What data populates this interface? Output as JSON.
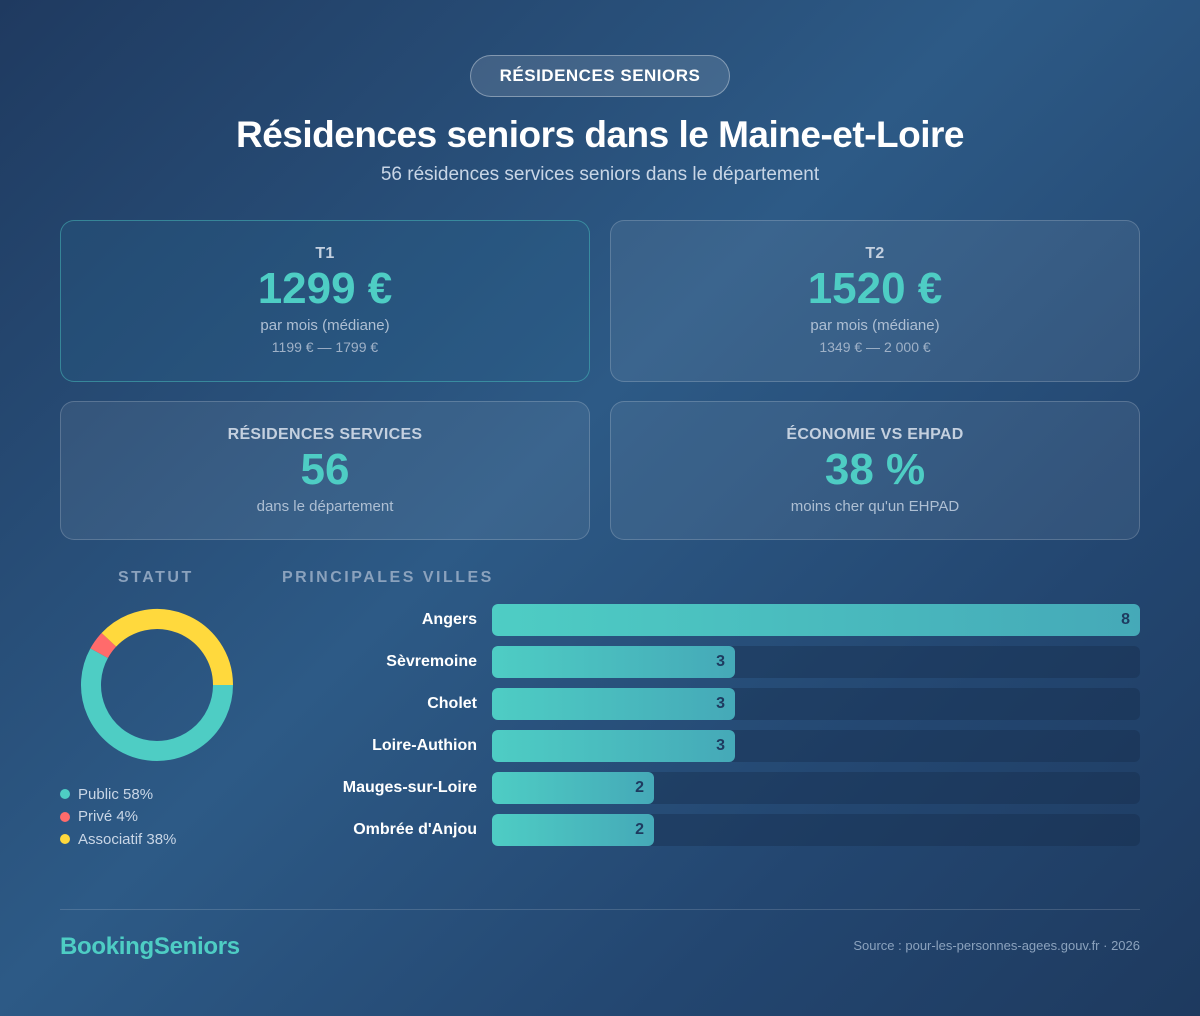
{
  "badge": "RÉSIDENCES SENIORS",
  "title": "Résidences seniors dans le Maine-et-Loire",
  "subtitle": "56 résidences services seniors dans le département",
  "cards": [
    {
      "label": "T1",
      "value": "1299 €",
      "sub": "par mois (médiane)",
      "range": "1199 € — 1799 €"
    },
    {
      "label": "T2",
      "value": "1520 €",
      "sub": "par mois (médiane)",
      "range": "1349 € — 2 000 €"
    },
    {
      "label": "RÉSIDENCES SERVICES",
      "value": "56",
      "sub": "dans le département"
    },
    {
      "label": "ÉCONOMIE VS EHPAD",
      "value": "38 %",
      "sub": "moins cher qu'un EHPAD"
    }
  ],
  "chart_data": [
    {
      "type": "pie",
      "title": "STATUT",
      "donut": true,
      "slices": [
        {
          "label": "Public 58%",
          "value": 58,
          "color": "#4ecdc4"
        },
        {
          "label": "Privé 4%",
          "value": 4,
          "color": "#ff6b6b"
        },
        {
          "label": "Associatif 38%",
          "value": 38,
          "color": "#ffd93d"
        }
      ]
    },
    {
      "type": "bar",
      "orientation": "horizontal",
      "title": "PRINCIPALES VILLES",
      "categories": [
        "Angers",
        "Sèvremoine",
        "Cholet",
        "Loire-Authion",
        "Mauges-sur-Loire",
        "Ombrée d'Anjou"
      ],
      "values": [
        8,
        3,
        3,
        3,
        2,
        2
      ],
      "xlim": [
        0,
        8
      ],
      "color": "#4ecdc4"
    }
  ],
  "footer": {
    "brand": "BookingSeniors",
    "source": "Source : pour-les-personnes-agees.gouv.fr · 2026"
  }
}
